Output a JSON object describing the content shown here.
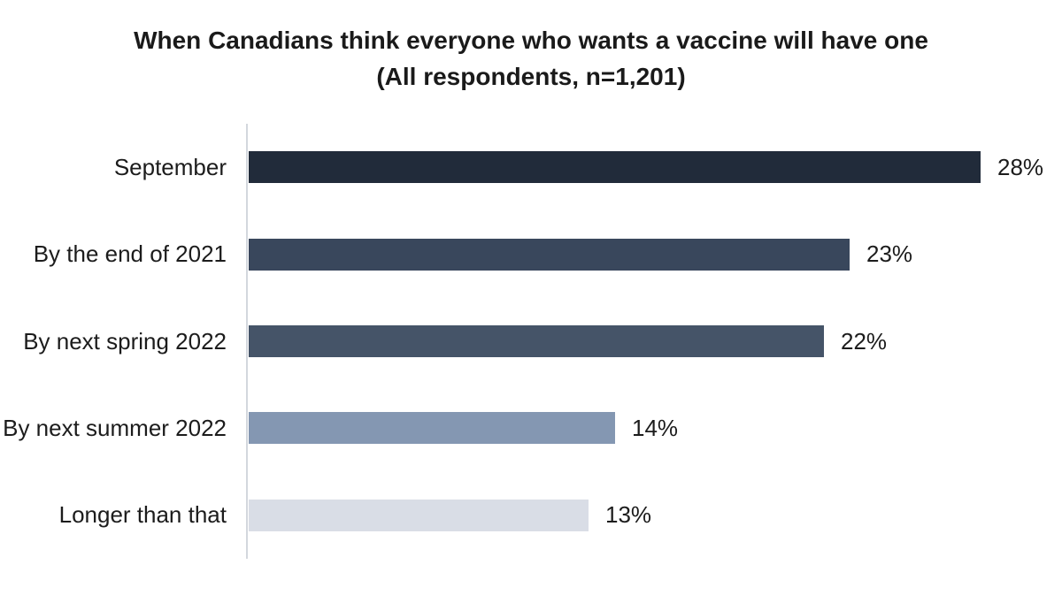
{
  "title": {
    "line1": "When Canadians think everyone who wants a vaccine will have one",
    "line2": "(All respondents, n=1,201)"
  },
  "chart_data": {
    "type": "bar",
    "orientation": "horizontal",
    "title": "When Canadians think everyone who wants a vaccine will have one (All respondents, n=1,201)",
    "categories": [
      "September",
      "By the end of 2021",
      "By next spring 2022",
      "By next summer 2022",
      "Longer than that"
    ],
    "values": [
      28,
      23,
      22,
      14,
      13
    ],
    "value_labels": [
      "28%",
      "23%",
      "22%",
      "14%",
      "13%"
    ],
    "bar_colors": [
      "#212b3a",
      "#39475c",
      "#455468",
      "#8497b2",
      "#d9dde6"
    ],
    "xlabel": "",
    "ylabel": "",
    "xlim": [
      0,
      28
    ],
    "grid": false,
    "legend": false,
    "data_labels": true,
    "background_color": "#ffffff",
    "axis_line_color": "#d3d7dd",
    "text_color": "#1c1c1c"
  }
}
